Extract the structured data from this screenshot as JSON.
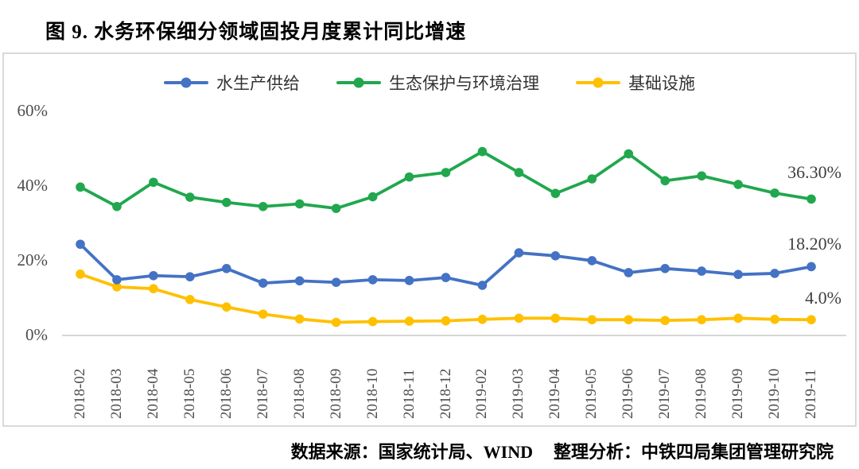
{
  "title": "图 9. 水务环保细分领域固投月度累计同比增速",
  "footer": {
    "source": "数据来源：国家统计局、WIND",
    "analysis": "整理分析：中铁四局集团管理研究院"
  },
  "chart_data": {
    "type": "line",
    "title": "图 9. 水务环保细分领域固投月度累计同比增速",
    "categories": [
      "2018-02",
      "2018-03",
      "2018-04",
      "2018-05",
      "2018-06",
      "2018-07",
      "2018-08",
      "2018-09",
      "2018-10",
      "2018-11",
      "2018-12",
      "2019-02",
      "2019-03",
      "2019-04",
      "2019-05",
      "2019-06",
      "2019-07",
      "2019-08",
      "2019-09",
      "2019-10",
      "2019-11"
    ],
    "series": [
      {
        "name": "水生产供给",
        "color": "#4472C4",
        "values": [
          24.2,
          14.7,
          15.8,
          15.5,
          17.7,
          13.8,
          14.4,
          14.0,
          14.7,
          14.5,
          15.3,
          13.2,
          21.9,
          21.1,
          19.8,
          16.6,
          17.7,
          17.0,
          16.1,
          16.4,
          18.2
        ]
      },
      {
        "name": "生态保护与环境治理",
        "color": "#21A74E",
        "values": [
          39.5,
          34.3,
          40.8,
          36.8,
          35.4,
          34.3,
          35.0,
          33.8,
          36.9,
          42.2,
          43.4,
          49.0,
          43.4,
          37.8,
          41.7,
          48.4,
          41.2,
          42.5,
          40.2,
          37.9,
          36.3
        ]
      },
      {
        "name": "基础设施",
        "color": "#FFC000",
        "values": [
          16.2,
          12.8,
          12.3,
          9.4,
          7.4,
          5.5,
          4.2,
          3.3,
          3.5,
          3.6,
          3.7,
          4.1,
          4.4,
          4.4,
          4.0,
          4.0,
          3.8,
          4.0,
          4.4,
          4.1,
          4.0
        ]
      }
    ],
    "xlabel": "",
    "ylabel": "",
    "ylim": [
      0,
      60
    ],
    "yticks": [
      {
        "label": "60%",
        "value": 60
      },
      {
        "label": "40%",
        "value": 40
      },
      {
        "label": "20%",
        "value": 20
      },
      {
        "label": "0%",
        "value": 0
      }
    ],
    "annotations": [
      {
        "series": "生态保护与环境治理",
        "text": "36.30%"
      },
      {
        "series": "水生产供给",
        "text": "18.20%"
      },
      {
        "series": "基础设施",
        "text": "4.0%"
      }
    ],
    "legend_position": "top",
    "grid": false,
    "axis_color": "#c9c9c9"
  }
}
